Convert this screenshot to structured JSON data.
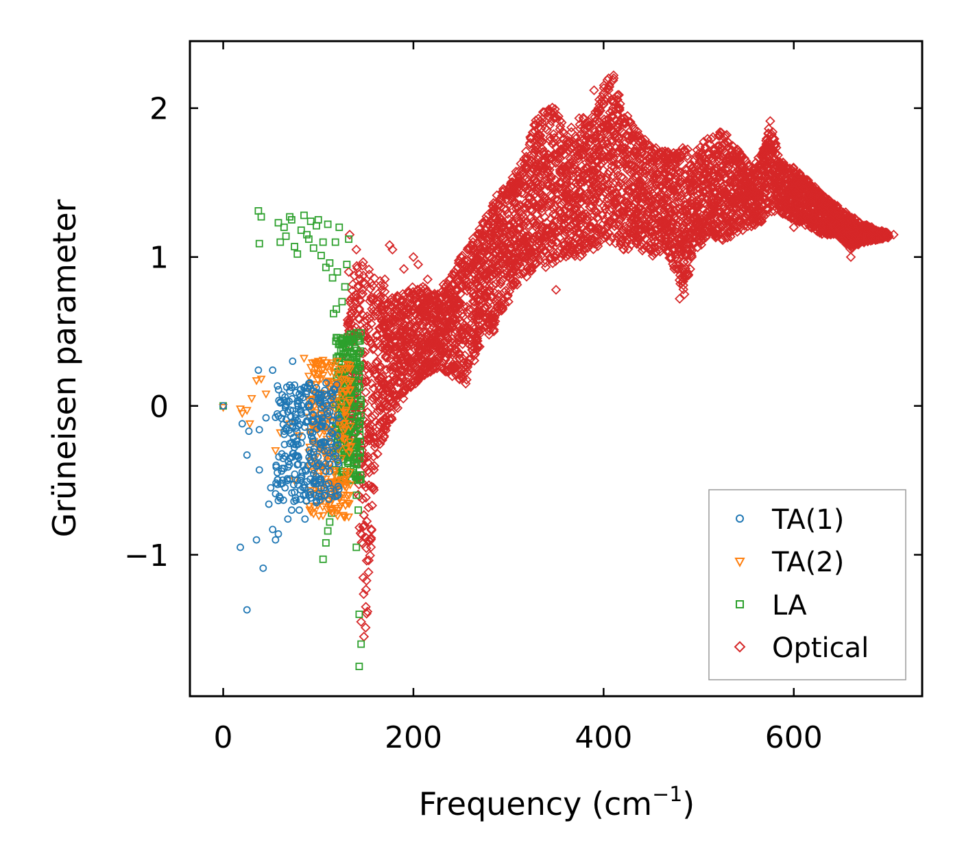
{
  "chart_data": {
    "type": "scatter",
    "xlabel": "Frequency (cm",
    "xlabel_exponent": "−1",
    "xlabel_suffix": ")",
    "ylabel": "Grüneisen parameter",
    "xlim": [
      -35,
      735
    ],
    "ylim": [
      -1.95,
      2.45
    ],
    "xticks": [
      0,
      200,
      400,
      600
    ],
    "xtick_labels": [
      "0",
      "200",
      "400",
      "600"
    ],
    "yticks": [
      -1,
      0,
      1,
      2
    ],
    "ytick_labels": [
      "−1",
      "0",
      "1",
      "2"
    ],
    "grid": false,
    "legend_position": "lower-right",
    "series": [
      {
        "name": "TA(1)",
        "marker": "circle",
        "color": "#1f77b4",
        "points": [
          [
            0,
            0
          ],
          [
            18,
            -0.95
          ],
          [
            20,
            -0.12
          ],
          [
            25,
            -0.33
          ],
          [
            25,
            -1.37
          ],
          [
            27,
            -0.17
          ],
          [
            35,
            -0.9
          ],
          [
            37,
            0.24
          ],
          [
            38,
            -0.43
          ],
          [
            38,
            -0.16
          ],
          [
            42,
            -1.09
          ],
          [
            45,
            -0.08
          ],
          [
            48,
            -0.66
          ],
          [
            50,
            -0.55
          ],
          [
            52,
            0.24
          ],
          [
            52,
            -0.83
          ],
          [
            55,
            -0.9
          ],
          [
            58,
            -0.86
          ],
          [
            60,
            -0.62
          ],
          [
            62,
            -0.42
          ],
          [
            65,
            -0.55
          ],
          [
            68,
            -0.76
          ],
          [
            70,
            -0.35
          ],
          [
            72,
            -0.7
          ],
          [
            73,
            0.3
          ],
          [
            75,
            -0.58
          ],
          [
            78,
            -0.5
          ],
          [
            80,
            -0.7
          ],
          [
            82,
            -0.25
          ],
          [
            84,
            -0.4
          ],
          [
            86,
            -0.76
          ],
          [
            88,
            -0.1
          ],
          [
            90,
            -0.6
          ],
          [
            92,
            -0.32
          ],
          [
            94,
            -0.18
          ],
          [
            96,
            -0.5
          ],
          [
            98,
            -0.65
          ],
          [
            100,
            -0.4
          ],
          [
            102,
            -0.25
          ],
          [
            104,
            -0.08
          ],
          [
            106,
            -0.55
          ],
          [
            108,
            -0.44
          ],
          [
            110,
            -0.3
          ],
          [
            112,
            -0.2
          ],
          [
            60,
            0.02
          ],
          [
            65,
            0.06
          ],
          [
            70,
            0.1
          ],
          [
            75,
            0.14
          ],
          [
            80,
            0.08
          ],
          [
            85,
            0.12
          ],
          [
            90,
            0.15
          ],
          [
            95,
            0.1
          ],
          [
            100,
            0.05
          ],
          [
            105,
            0.0
          ],
          [
            110,
            -0.05
          ],
          [
            115,
            -0.1
          ],
          [
            120,
            -0.2
          ]
        ],
        "cluster": {
          "x": [
            55,
            122
          ],
          "y": [
            -0.65,
            0.16
          ]
        }
      },
      {
        "name": "TA(2)",
        "marker": "triangle-down",
        "color": "#ff7f0e",
        "points": [
          [
            0,
            -0.01
          ],
          [
            18,
            -0.02
          ],
          [
            20,
            -0.05
          ],
          [
            25,
            -0.03
          ],
          [
            28,
            -0.12
          ],
          [
            30,
            0.05
          ],
          [
            35,
            0.17
          ],
          [
            40,
            0.18
          ],
          [
            45,
            0.08
          ],
          [
            55,
            -0.3
          ],
          [
            60,
            -0.18
          ],
          [
            70,
            -0.12
          ],
          [
            75,
            -0.5
          ],
          [
            80,
            -0.2
          ],
          [
            85,
            0.32
          ],
          [
            90,
            0.2
          ],
          [
            95,
            -0.25
          ],
          [
            100,
            0.3
          ],
          [
            105,
            -0.05
          ],
          [
            110,
            -0.42
          ],
          [
            115,
            -0.62
          ],
          [
            118,
            -0.55
          ],
          [
            120,
            0.3
          ],
          [
            125,
            0.25
          ],
          [
            128,
            0.1
          ]
        ],
        "cluster": {
          "x": [
            90,
            135
          ],
          "y": [
            -0.75,
            0.32
          ]
        }
      },
      {
        "name": "LA",
        "marker": "square",
        "color": "#2ca02c",
        "points": [
          [
            0,
            0
          ],
          [
            37,
            1.31
          ],
          [
            38,
            1.09
          ],
          [
            40,
            1.27
          ],
          [
            58,
            1.23
          ],
          [
            60,
            1.1
          ],
          [
            64,
            1.2
          ],
          [
            66,
            1.14
          ],
          [
            70,
            1.27
          ],
          [
            72,
            1.25
          ],
          [
            75,
            1.07
          ],
          [
            78,
            1.02
          ],
          [
            82,
            1.18
          ],
          [
            85,
            1.28
          ],
          [
            88,
            1.15
          ],
          [
            90,
            1.12
          ],
          [
            92,
            1.24
          ],
          [
            95,
            1.06
          ],
          [
            98,
            1.21
          ],
          [
            100,
            1.25
          ],
          [
            103,
            1.01
          ],
          [
            105,
            1.1
          ],
          [
            108,
            0.93
          ],
          [
            110,
            1.22
          ],
          [
            112,
            0.96
          ],
          [
            115,
            0.86
          ],
          [
            118,
            1.1
          ],
          [
            120,
            0.9
          ],
          [
            122,
            1.2
          ],
          [
            125,
            0.7
          ],
          [
            128,
            0.8
          ],
          [
            130,
            0.95
          ],
          [
            132,
            1.12
          ],
          [
            116,
            0.62
          ],
          [
            119,
            0.65
          ],
          [
            122,
            0.3
          ],
          [
            126,
            0.35
          ],
          [
            140,
            -0.95
          ],
          [
            142,
            -0.7
          ],
          [
            143,
            -1.4
          ],
          [
            145,
            -1.6
          ],
          [
            143,
            -1.75
          ],
          [
            137,
            -0.42
          ],
          [
            140,
            -0.6
          ],
          [
            105,
            -1.03
          ],
          [
            108,
            -0.92
          ],
          [
            110,
            -0.84
          ],
          [
            112,
            -0.78
          ],
          [
            114,
            -0.72
          ]
        ],
        "cluster": {
          "x": [
            118,
            145
          ],
          "y": [
            -0.5,
            0.5
          ]
        }
      },
      {
        "name": "Optical",
        "marker": "diamond",
        "color": "#d62728",
        "band": [
          {
            "x": 130,
            "lo": -0.15,
            "hi": 0.6
          },
          {
            "x": 140,
            "lo": -0.45,
            "hi": 0.95
          },
          {
            "x": 150,
            "lo": -1.6,
            "hi": 1.0
          },
          {
            "x": 160,
            "lo": -0.4,
            "hi": 0.9
          },
          {
            "x": 170,
            "lo": -0.2,
            "hi": 0.8
          },
          {
            "x": 180,
            "lo": -0.05,
            "hi": 0.75
          },
          {
            "x": 195,
            "lo": 0.1,
            "hi": 0.8
          },
          {
            "x": 210,
            "lo": 0.2,
            "hi": 0.8
          },
          {
            "x": 225,
            "lo": 0.25,
            "hi": 0.75
          },
          {
            "x": 240,
            "lo": 0.2,
            "hi": 0.9
          },
          {
            "x": 255,
            "lo": 0.15,
            "hi": 1.05
          },
          {
            "x": 270,
            "lo": 0.4,
            "hi": 1.2
          },
          {
            "x": 285,
            "lo": 0.5,
            "hi": 1.4
          },
          {
            "x": 300,
            "lo": 0.75,
            "hi": 1.5
          },
          {
            "x": 315,
            "lo": 0.85,
            "hi": 1.65
          },
          {
            "x": 330,
            "lo": 0.9,
            "hi": 1.95
          },
          {
            "x": 345,
            "lo": 0.95,
            "hi": 2.05
          },
          {
            "x": 360,
            "lo": 1.0,
            "hi": 1.85
          },
          {
            "x": 375,
            "lo": 1.0,
            "hi": 1.95
          },
          {
            "x": 390,
            "lo": 1.05,
            "hi": 1.95
          },
          {
            "x": 400,
            "lo": 1.1,
            "hi": 2.15
          },
          {
            "x": 410,
            "lo": 1.1,
            "hi": 2.25
          },
          {
            "x": 420,
            "lo": 1.05,
            "hi": 2.0
          },
          {
            "x": 435,
            "lo": 1.05,
            "hi": 1.85
          },
          {
            "x": 450,
            "lo": 1.0,
            "hi": 1.75
          },
          {
            "x": 465,
            "lo": 1.05,
            "hi": 1.72
          },
          {
            "x": 475,
            "lo": 0.9,
            "hi": 1.7
          },
          {
            "x": 485,
            "lo": 0.75,
            "hi": 1.75
          },
          {
            "x": 495,
            "lo": 1.0,
            "hi": 1.7
          },
          {
            "x": 510,
            "lo": 1.15,
            "hi": 1.82
          },
          {
            "x": 525,
            "lo": 1.1,
            "hi": 1.85
          },
          {
            "x": 540,
            "lo": 1.15,
            "hi": 1.75
          },
          {
            "x": 555,
            "lo": 1.2,
            "hi": 1.6
          },
          {
            "x": 570,
            "lo": 1.25,
            "hi": 1.75
          },
          {
            "x": 575,
            "lo": 1.3,
            "hi": 1.93
          },
          {
            "x": 585,
            "lo": 1.3,
            "hi": 1.65
          },
          {
            "x": 600,
            "lo": 1.25,
            "hi": 1.6
          },
          {
            "x": 615,
            "lo": 1.2,
            "hi": 1.52
          },
          {
            "x": 630,
            "lo": 1.15,
            "hi": 1.42
          },
          {
            "x": 645,
            "lo": 1.15,
            "hi": 1.35
          },
          {
            "x": 660,
            "lo": 1.05,
            "hi": 1.28
          },
          {
            "x": 675,
            "lo": 1.1,
            "hi": 1.22
          },
          {
            "x": 690,
            "lo": 1.12,
            "hi": 1.18
          },
          {
            "x": 700,
            "lo": 1.13,
            "hi": 1.16
          }
        ],
        "points": [
          [
            125,
            0.45
          ],
          [
            132,
            0.9
          ],
          [
            133,
            1.15
          ],
          [
            140,
            1.05
          ],
          [
            145,
            -1.45
          ],
          [
            148,
            -1.55
          ],
          [
            150,
            -1.35
          ],
          [
            153,
            -0.9
          ],
          [
            158,
            -0.55
          ],
          [
            162,
            0.3
          ],
          [
            170,
            0.85
          ],
          [
            175,
            1.08
          ],
          [
            178,
            1.05
          ],
          [
            190,
            0.92
          ],
          [
            200,
            1.0
          ],
          [
            205,
            0.95
          ],
          [
            210,
            0.8
          ],
          [
            215,
            0.85
          ],
          [
            250,
            0.2
          ],
          [
            255,
            0.15
          ],
          [
            265,
            0.35
          ],
          [
            280,
            0.9
          ],
          [
            300,
            0.7
          ],
          [
            350,
            0.78
          ],
          [
            390,
            2.12
          ],
          [
            400,
            2.03
          ],
          [
            415,
            1.7
          ],
          [
            480,
            0.72
          ],
          [
            485,
            0.75
          ],
          [
            520,
            1.18
          ],
          [
            560,
            1.27
          ],
          [
            600,
            1.2
          ],
          [
            660,
            1.0
          ],
          [
            670,
            1.12
          ],
          [
            700,
            1.14
          ],
          [
            705,
            1.15
          ]
        ]
      }
    ]
  }
}
